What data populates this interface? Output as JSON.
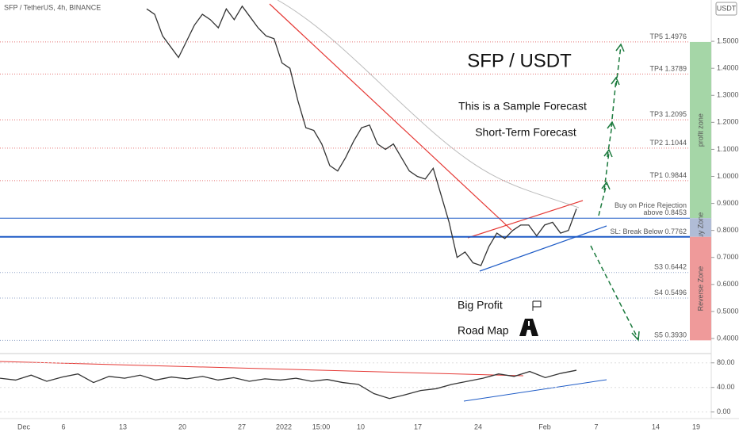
{
  "header": {
    "symbol": "SFP / TetherUS, 4h, BINANCE",
    "currency": "USDT"
  },
  "chart_data": [
    {
      "type": "line",
      "title": "SFP / USDT",
      "subtitle": "This is a Sample Forecast",
      "annotations": [
        "Short-Term Forecast",
        "Big Profit",
        "Road Map"
      ],
      "x_labels": [
        "Dec",
        "6",
        "13",
        "20",
        "27",
        "2022",
        "15:00",
        "10",
        "17",
        "24",
        "Feb",
        "7",
        "14",
        "19"
      ],
      "series": [
        {
          "color": "#333333",
          "values": [
            1.62,
            1.6,
            1.52,
            1.48,
            1.44,
            1.5,
            1.56,
            1.6,
            1.58,
            1.55,
            1.62,
            1.58,
            1.63,
            1.59,
            1.55,
            1.52,
            1.51,
            1.42,
            1.4,
            1.28,
            1.18,
            1.17,
            1.12,
            1.04,
            1.02,
            1.07,
            1.13,
            1.18,
            1.19,
            1.12,
            1.1,
            1.12,
            1.07,
            1.02,
            1.0,
            0.99,
            1.03,
            0.93,
            0.83,
            0.7,
            0.72,
            0.68,
            0.67,
            0.74,
            0.79,
            0.77,
            0.8,
            0.82,
            0.82,
            0.78,
            0.82,
            0.83,
            0.79,
            0.8,
            0.88
          ]
        }
      ],
      "levels": [
        {
          "label": "TP5 1.4976",
          "value": 1.4976,
          "color": "#e57373"
        },
        {
          "label": "TP4 1.3789",
          "value": 1.3789,
          "color": "#e57373"
        },
        {
          "label": "TP3 1.2095",
          "value": 1.2095,
          "color": "#e57373"
        },
        {
          "label": "TP2 1.1044",
          "value": 1.1044,
          "color": "#e57373"
        },
        {
          "label": "TP1 0.9844",
          "value": 0.9844,
          "color": "#e57373"
        },
        {
          "label": "Buy on Price Rejection\nabove 0.8453",
          "value": 0.8453,
          "color": "#1e5bc6"
        },
        {
          "label": "SL: Break Below 0.7762",
          "value": 0.7762,
          "color": "#1e5bc6"
        },
        {
          "label": "S3 0.6442",
          "value": 0.6442,
          "color": "#90a4c8"
        },
        {
          "label": "S4 0.5496",
          "value": 0.5496,
          "color": "#90a4c8"
        },
        {
          "label": "S5 0.3930",
          "value": 0.393,
          "color": "#90a4c8"
        }
      ],
      "zones": [
        {
          "label": "profit zone",
          "color": "#a5d6a7"
        },
        {
          "label": "Buy Zone",
          "color": "#b0bcd6"
        },
        {
          "label": "Reverse Zone",
          "color": "#ef9a9a"
        }
      ],
      "ylim": [
        0.35,
        1.65
      ],
      "yticks": [
        {
          "value": 0.4,
          "label": "0.4000"
        },
        {
          "value": 0.5,
          "label": "0.5000"
        },
        {
          "value": 0.6,
          "label": "0.6000"
        },
        {
          "value": 0.7,
          "label": "0.7000"
        },
        {
          "value": 0.8,
          "label": "0.8000"
        },
        {
          "value": 0.9,
          "label": "0.9000"
        },
        {
          "value": 1.0,
          "label": "1.0000"
        },
        {
          "value": 1.1,
          "label": "1.1000"
        },
        {
          "value": 1.2,
          "label": "1.2000"
        },
        {
          "value": 1.3,
          "label": "1.3000"
        },
        {
          "value": 1.4,
          "label": "1.4000"
        },
        {
          "value": 1.5,
          "label": "1.5000"
        }
      ]
    },
    {
      "type": "line",
      "series": [
        {
          "color": "#333333",
          "values": [
            55,
            52,
            60,
            50,
            57,
            62,
            48,
            58,
            55,
            60,
            52,
            57,
            54,
            58,
            52,
            56,
            50,
            54,
            52,
            55,
            50,
            53,
            48,
            45,
            30,
            22,
            28,
            35,
            38,
            45,
            50,
            55,
            62,
            58,
            66,
            56,
            63,
            68
          ]
        }
      ],
      "ylim": [
        -6,
        90
      ],
      "yticks": [
        {
          "value": 80,
          "label": "80.00"
        },
        {
          "value": 40,
          "label": "40.00"
        },
        {
          "value": 0,
          "label": "0.00"
        }
      ]
    }
  ]
}
